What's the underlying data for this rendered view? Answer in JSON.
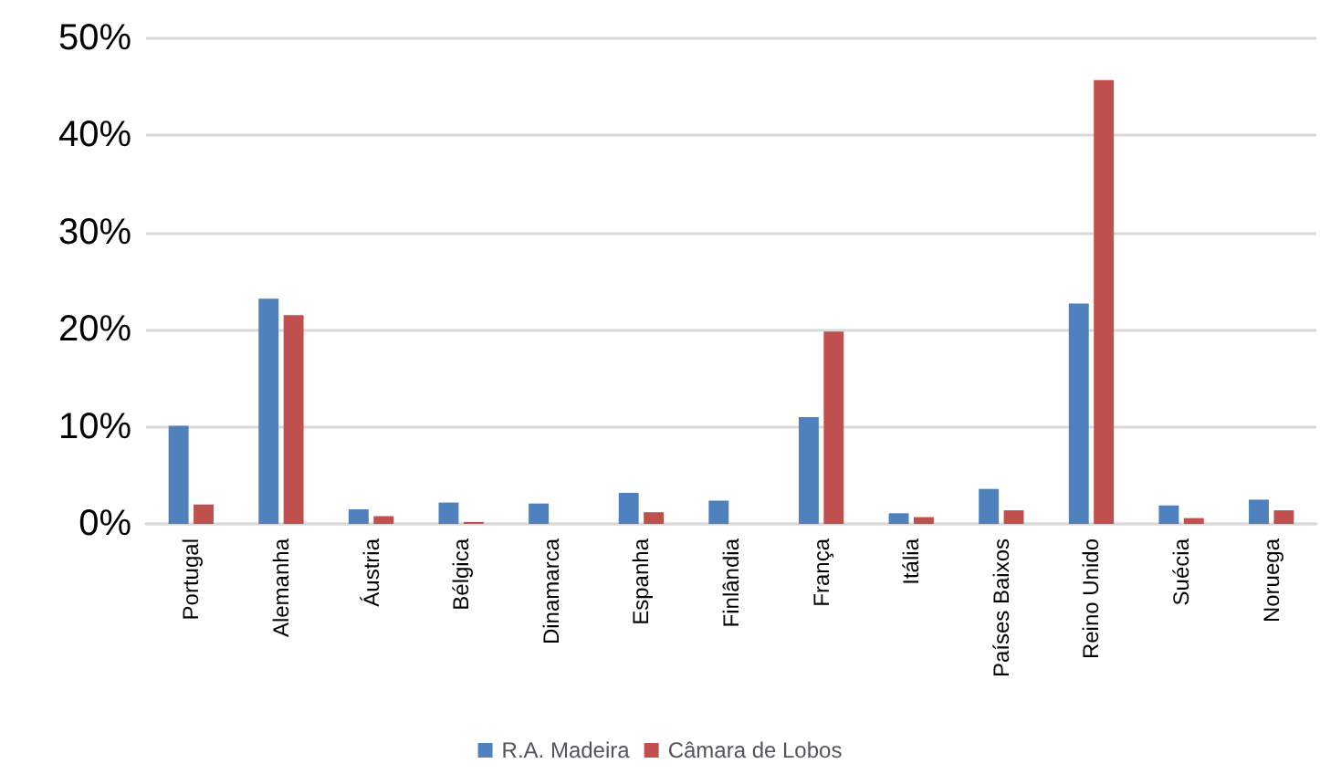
{
  "chart_data": {
    "type": "bar",
    "categories": [
      "Portugal",
      "Alemanha",
      "Áustria",
      "Bélgica",
      "Dinamarca",
      "Espanha",
      "Finlândia",
      "França",
      "Itália",
      "Países Baixos",
      "Reino Unido",
      "Suécia",
      "Noruega"
    ],
    "series": [
      {
        "name": "R.A. Madeira",
        "color": "#4f81bd",
        "values": [
          10.1,
          23.2,
          1.5,
          2.2,
          2.1,
          3.2,
          2.4,
          11.0,
          1.1,
          3.6,
          22.7,
          1.9,
          2.5
        ]
      },
      {
        "name": "Câmara de Lobos",
        "color": "#c0504d",
        "values": [
          2.0,
          21.5,
          0.8,
          0.2,
          0,
          1.2,
          0,
          19.8,
          0.7,
          1.4,
          45.7,
          0.6,
          1.4
        ]
      }
    ],
    "ylim": [
      0,
      50
    ],
    "yticks": [
      {
        "value": 0,
        "label": "0%"
      },
      {
        "value": 10,
        "label": "10%"
      },
      {
        "value": 20,
        "label": "20%"
      },
      {
        "value": 30,
        "label": "30%"
      },
      {
        "value": 40,
        "label": "40%"
      },
      {
        "value": 50,
        "label": "50%"
      }
    ],
    "grid": "y",
    "legend": "bottom"
  }
}
